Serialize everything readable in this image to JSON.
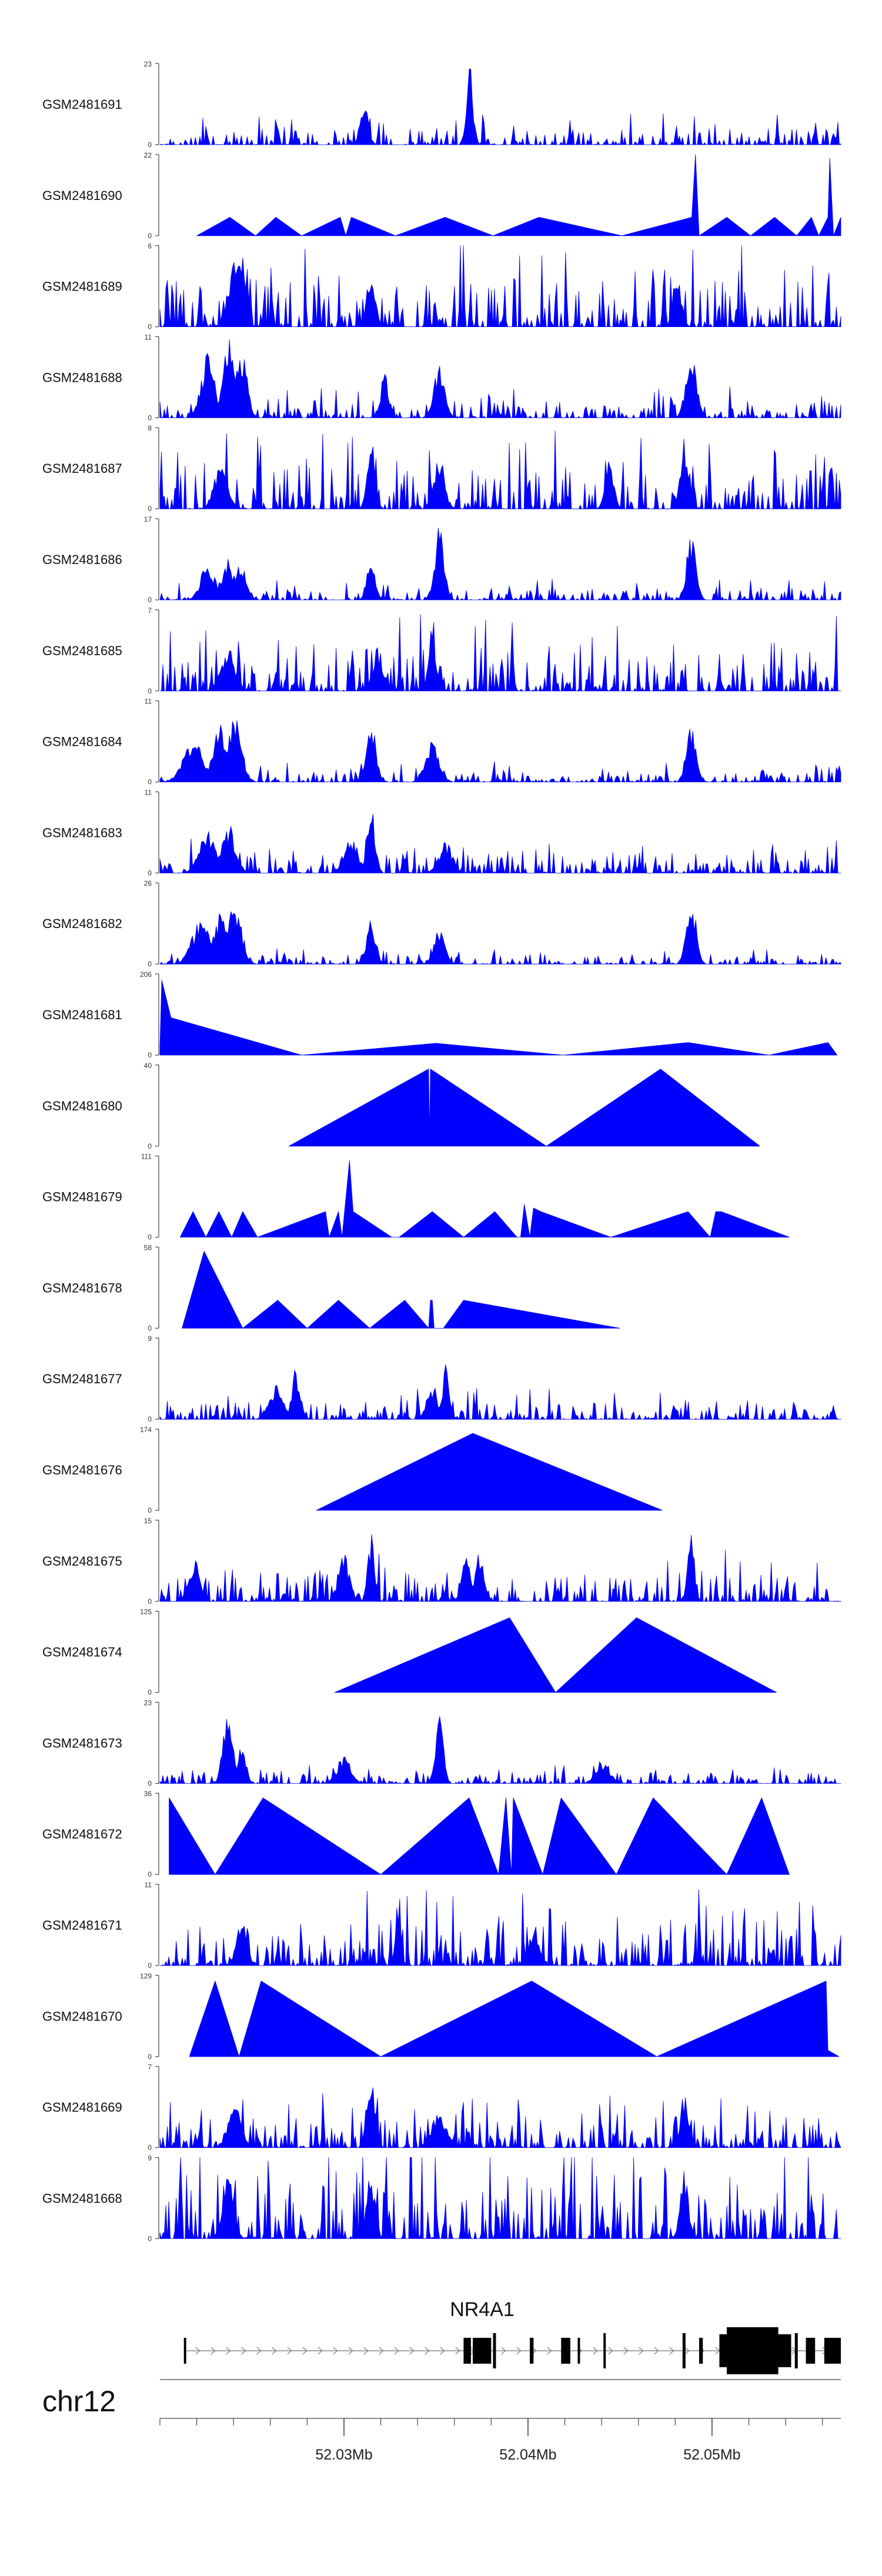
{
  "colors": {
    "signal": "#0000ff",
    "axis": "#444444",
    "gene": "#000000",
    "intron": "#888888"
  },
  "chart_data": {
    "type": "area",
    "title": "",
    "xlabel": "",
    "chromosome": "chr12",
    "xlim": [
      52020000,
      52057000
    ],
    "x_ticks": [
      52030000,
      52040000,
      52050000
    ],
    "x_tick_labels": [
      "52.03Mb",
      "52.04Mb",
      "52.05Mb"
    ],
    "tracks": [
      {
        "name": "GSM2481691",
        "ymax": 23,
        "style": "dense",
        "seed": 1,
        "base": 0.12,
        "peaks": [
          [
            0.3,
            0.55,
            0.006
          ],
          [
            0.455,
            1.0,
            0.005
          ]
        ]
      },
      {
        "name": "GSM2481690",
        "ymax": 22,
        "style": "tri",
        "points": [
          [
            52022000,
            0
          ],
          [
            52023800,
            5
          ],
          [
            52025200,
            0
          ],
          [
            52026300,
            5
          ],
          [
            52027700,
            0
          ],
          [
            52029800,
            5
          ],
          [
            52030100,
            0
          ],
          [
            52030400,
            5
          ],
          [
            52032800,
            0
          ],
          [
            52035500,
            5
          ],
          [
            52038100,
            0
          ],
          [
            52040600,
            5
          ],
          [
            52045100,
            0
          ],
          [
            52048900,
            5
          ],
          [
            52049100,
            22
          ],
          [
            52049300,
            0
          ],
          [
            52050800,
            5
          ],
          [
            52052100,
            0
          ],
          [
            52053400,
            5
          ],
          [
            52054600,
            0
          ],
          [
            52055400,
            5
          ],
          [
            52055800,
            0
          ],
          [
            52056300,
            5
          ],
          [
            52056400,
            21
          ],
          [
            52056600,
            0
          ],
          [
            52057000,
            5
          ]
        ]
      },
      {
        "name": "GSM2481689",
        "ymax": 6,
        "style": "dense",
        "seed": 3,
        "base": 0.35,
        "peaks": [
          [
            0.11,
            0.9,
            0.01
          ],
          [
            0.12,
            1.0,
            0.006
          ],
          [
            0.31,
            0.75,
            0.006
          ],
          [
            0.76,
            0.7,
            0.006
          ]
        ]
      },
      {
        "name": "GSM2481688",
        "ymax": 11,
        "style": "dense",
        "seed": 4,
        "base": 0.12,
        "peaks": [
          [
            0.07,
            0.8,
            0.01
          ],
          [
            0.1,
            1.0,
            0.008
          ],
          [
            0.12,
            0.9,
            0.008
          ],
          [
            0.33,
            0.55,
            0.006
          ],
          [
            0.41,
            0.7,
            0.008
          ],
          [
            0.78,
            0.8,
            0.008
          ]
        ]
      },
      {
        "name": "GSM2481687",
        "ymax": 8,
        "style": "dense",
        "seed": 5,
        "base": 0.3,
        "peaks": [
          [
            0.09,
            0.6,
            0.01
          ],
          [
            0.31,
            0.9,
            0.006
          ],
          [
            0.41,
            0.7,
            0.008
          ],
          [
            0.66,
            0.7,
            0.006
          ],
          [
            0.77,
            0.75,
            0.006
          ]
        ]
      },
      {
        "name": "GSM2481686",
        "ymax": 17,
        "style": "dense",
        "seed": 6,
        "base": 0.08,
        "peaks": [
          [
            0.07,
            0.5,
            0.01
          ],
          [
            0.1,
            0.55,
            0.008
          ],
          [
            0.12,
            0.5,
            0.008
          ],
          [
            0.31,
            0.65,
            0.006
          ],
          [
            0.41,
            0.95,
            0.007
          ],
          [
            0.78,
            0.8,
            0.007
          ]
        ]
      },
      {
        "name": "GSM2481685",
        "ymax": 7,
        "style": "dense",
        "seed": 7,
        "base": 0.3,
        "peaks": [
          [
            0.4,
            0.95,
            0.005
          ],
          [
            0.1,
            0.6,
            0.01
          ],
          [
            0.32,
            0.55,
            0.008
          ]
        ]
      },
      {
        "name": "GSM2481684",
        "ymax": 11,
        "style": "dense",
        "seed": 8,
        "base": 0.08,
        "peaks": [
          [
            0.05,
            0.55,
            0.015
          ],
          [
            0.09,
            0.75,
            0.012
          ],
          [
            0.11,
            0.8,
            0.01
          ],
          [
            0.31,
            0.85,
            0.007
          ],
          [
            0.4,
            0.55,
            0.01
          ],
          [
            0.78,
            0.75,
            0.007
          ]
        ]
      },
      {
        "name": "GSM2481683",
        "ymax": 11,
        "style": "dense",
        "seed": 9,
        "base": 0.14,
        "peaks": [
          [
            0.07,
            0.55,
            0.012
          ],
          [
            0.1,
            0.65,
            0.01
          ],
          [
            0.31,
            0.9,
            0.006
          ],
          [
            0.28,
            0.5,
            0.01
          ],
          [
            0.42,
            0.4,
            0.01
          ]
        ]
      },
      {
        "name": "GSM2481682",
        "ymax": 26,
        "style": "dense",
        "seed": 10,
        "base": 0.06,
        "peaks": [
          [
            0.06,
            0.55,
            0.013
          ],
          [
            0.09,
            0.7,
            0.01
          ],
          [
            0.11,
            0.8,
            0.01
          ],
          [
            0.31,
            0.55,
            0.007
          ],
          [
            0.41,
            0.45,
            0.008
          ],
          [
            0.78,
            0.9,
            0.007
          ]
        ]
      },
      {
        "name": "GSM2481681",
        "ymax": 206,
        "style": "tri",
        "points": [
          [
            52020000,
            20
          ],
          [
            52020100,
            190
          ],
          [
            52020600,
            95
          ],
          [
            52027700,
            0
          ],
          [
            52035000,
            30
          ],
          [
            52041900,
            0
          ],
          [
            52048700,
            32
          ],
          [
            52053100,
            0
          ],
          [
            52056300,
            32
          ],
          [
            52056800,
            0
          ]
        ]
      },
      {
        "name": "GSM2481680",
        "ymax": 40,
        "style": "tri",
        "points": [
          [
            52027000,
            0
          ],
          [
            52034600,
            38
          ],
          [
            52034650,
            5
          ],
          [
            52034700,
            38
          ],
          [
            52041000,
            0
          ],
          [
            52047200,
            38
          ],
          [
            52052600,
            0
          ]
        ]
      },
      {
        "name": "GSM2481679",
        "ymax": 111,
        "style": "tri",
        "points": [
          [
            52021100,
            0
          ],
          [
            52021800,
            35
          ],
          [
            52022500,
            0
          ],
          [
            52023200,
            35
          ],
          [
            52023900,
            0
          ],
          [
            52024500,
            35
          ],
          [
            52025300,
            0
          ],
          [
            52029000,
            35
          ],
          [
            52029200,
            0
          ],
          [
            52029700,
            35
          ],
          [
            52029900,
            0
          ],
          [
            52030300,
            105
          ],
          [
            52030500,
            35
          ],
          [
            52032600,
            0
          ],
          [
            52033000,
            0
          ],
          [
            52034800,
            35
          ],
          [
            52036500,
            0
          ],
          [
            52038200,
            35
          ],
          [
            52039400,
            0
          ],
          [
            52039600,
            0
          ],
          [
            52039800,
            45
          ],
          [
            52040100,
            0
          ],
          [
            52040300,
            40
          ],
          [
            52040700,
            35
          ],
          [
            52044500,
            0
          ],
          [
            52048700,
            35
          ],
          [
            52049900,
            0
          ],
          [
            52050200,
            35
          ],
          [
            52050500,
            35
          ],
          [
            52054200,
            0
          ]
        ]
      },
      {
        "name": "GSM2481678",
        "ymax": 58,
        "style": "tri",
        "points": [
          [
            52021200,
            0
          ],
          [
            52022400,
            55
          ],
          [
            52024500,
            0
          ],
          [
            52026400,
            20
          ],
          [
            52028000,
            0
          ],
          [
            52029700,
            20
          ],
          [
            52031400,
            0
          ],
          [
            52033300,
            20
          ],
          [
            52034600,
            0
          ],
          [
            52034700,
            20
          ],
          [
            52034800,
            20
          ],
          [
            52034900,
            0
          ],
          [
            52035400,
            0
          ],
          [
            52036500,
            20
          ],
          [
            52045000,
            0
          ]
        ]
      },
      {
        "name": "GSM2481677",
        "ymax": 9,
        "style": "dense",
        "seed": 17,
        "base": 0.12,
        "peaks": [
          [
            0.2,
            0.65,
            0.006
          ],
          [
            0.42,
            0.8,
            0.005
          ],
          [
            0.17,
            0.45,
            0.01
          ],
          [
            0.4,
            0.45,
            0.008
          ]
        ]
      },
      {
        "name": "GSM2481676",
        "ymax": 174,
        "style": "tri",
        "points": [
          [
            52028500,
            0
          ],
          [
            52037000,
            165
          ],
          [
            52047300,
            0
          ]
        ]
      },
      {
        "name": "GSM2481675",
        "ymax": 15,
        "style": "dense",
        "seed": 19,
        "base": 0.2,
        "peaks": [
          [
            0.05,
            0.55,
            0.008
          ],
          [
            0.27,
            0.65,
            0.008
          ],
          [
            0.31,
            0.85,
            0.005
          ],
          [
            0.45,
            0.8,
            0.006
          ],
          [
            0.47,
            0.7,
            0.006
          ],
          [
            0.78,
            0.85,
            0.005
          ]
        ]
      },
      {
        "name": "GSM2481674",
        "ymax": 125,
        "style": "tri",
        "points": [
          [
            52029500,
            0
          ],
          [
            52039000,
            115
          ],
          [
            52041500,
            0
          ],
          [
            52045900,
            115
          ],
          [
            52053500,
            0
          ]
        ]
      },
      {
        "name": "GSM2481673",
        "ymax": 23,
        "style": "dense",
        "seed": 21,
        "base": 0.07,
        "peaks": [
          [
            0.1,
            1.0,
            0.007
          ],
          [
            0.12,
            0.55,
            0.006
          ],
          [
            0.41,
            0.85,
            0.006
          ],
          [
            0.27,
            0.35,
            0.01
          ],
          [
            0.65,
            0.3,
            0.01
          ]
        ]
      },
      {
        "name": "GSM2481672",
        "ymax": 36,
        "style": "tri",
        "points": [
          [
            52020500,
            34
          ],
          [
            52023000,
            0
          ],
          [
            52025600,
            34
          ],
          [
            52032000,
            0
          ],
          [
            52036800,
            34
          ],
          [
            52038400,
            0
          ],
          [
            52038800,
            34
          ],
          [
            52039100,
            0
          ],
          [
            52039200,
            34
          ],
          [
            52040800,
            0
          ],
          [
            52041800,
            34
          ],
          [
            52044800,
            0
          ],
          [
            52046800,
            34
          ],
          [
            52050800,
            0
          ],
          [
            52052700,
            34
          ],
          [
            52054200,
            0
          ]
        ]
      },
      {
        "name": "GSM2481671",
        "ymax": 11,
        "style": "dense",
        "seed": 23,
        "base": 0.3,
        "peaks": [
          [
            0.35,
            0.95,
            0.004
          ],
          [
            0.12,
            0.55,
            0.008
          ],
          [
            0.55,
            0.5,
            0.008
          ]
        ]
      },
      {
        "name": "GSM2481670",
        "ymax": 129,
        "style": "tri",
        "points": [
          [
            52021600,
            0
          ],
          [
            52023000,
            120
          ],
          [
            52024300,
            0
          ],
          [
            52025500,
            120
          ],
          [
            52032000,
            0
          ],
          [
            52040200,
            120
          ],
          [
            52047000,
            0
          ],
          [
            52056200,
            120
          ],
          [
            52056300,
            10
          ],
          [
            52056900,
            0
          ]
        ]
      },
      {
        "name": "GSM2481669",
        "ymax": 7,
        "style": "dense",
        "seed": 25,
        "base": 0.22,
        "peaks": [
          [
            0.31,
            0.95,
            0.006
          ],
          [
            0.11,
            0.55,
            0.01
          ],
          [
            0.77,
            0.7,
            0.006
          ],
          [
            0.41,
            0.5,
            0.01
          ]
        ]
      },
      {
        "name": "GSM2481668",
        "ymax": 9,
        "style": "dense",
        "seed": 26,
        "base": 0.45,
        "peaks": [
          [
            0.1,
            0.85,
            0.008
          ],
          [
            0.31,
            0.9,
            0.006
          ],
          [
            0.77,
            0.85,
            0.006
          ]
        ]
      }
    ],
    "gene": {
      "name": "NR4A1",
      "strand": "+",
      "start": 52021300,
      "end": 52057000,
      "exons": [
        [
          52021300,
          52021400
        ],
        [
          52036500,
          52036900
        ],
        [
          52037000,
          52038000
        ],
        [
          52038100,
          52038300
        ],
        [
          52040100,
          52040300
        ],
        [
          52041800,
          52042300
        ],
        [
          52042700,
          52042800
        ],
        [
          52044100,
          52044200
        ],
        [
          52048400,
          52048600
        ],
        [
          52049300,
          52049500
        ],
        [
          52050400,
          52054300
        ],
        [
          52054500,
          52054700
        ],
        [
          52055100,
          52055600
        ],
        [
          52056100,
          52057000
        ]
      ],
      "thin_exons": [
        [
          52038100,
          52038300
        ],
        [
          52041800,
          52041950
        ],
        [
          52044100,
          52044200
        ],
        [
          52048400,
          52048600
        ],
        [
          52054500,
          52054700
        ]
      ]
    }
  }
}
